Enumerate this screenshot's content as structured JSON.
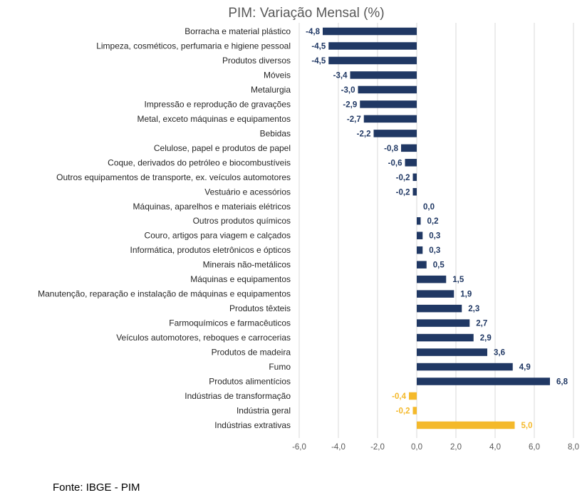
{
  "chart_data": {
    "type": "bar",
    "orientation": "horizontal",
    "title": "PIM: Variação Mensal (%)",
    "categories": [
      "Borracha e material plástico",
      "Limpeza, cosméticos, perfumaria e higiene pessoal",
      "Produtos diversos",
      "Móveis",
      "Metalurgia",
      "Impressão e reprodução de gravações",
      "Metal, exceto máquinas e equipamentos",
      "Bebidas",
      "Celulose, papel e produtos de papel",
      "Coque, derivados do petróleo e biocombustíveis",
      "Outros equipamentos de transporte, ex. veículos automotores",
      "Vestuário e acessórios",
      "Máquinas, aparelhos e materiais elétricos",
      "Outros produtos químicos",
      "Couro, artigos para viagem e calçados",
      "Informática, produtos eletrônicos e ópticos",
      "Minerais não-metálicos",
      "Máquinas e equipamentos",
      "Manutenção, reparação e instalação de máquinas e equipamentos",
      "Produtos têxteis",
      "Farmoquímicos e farmacêuticos",
      "Veículos automotores, reboques e carrocerias",
      "Produtos de madeira",
      "Fumo",
      "Produtos alimentícios",
      "Indústrias de transformação",
      "Indústria geral",
      "Indústrias extrativas"
    ],
    "values": [
      -4.8,
      -4.5,
      -4.5,
      -3.4,
      -3.0,
      -2.9,
      -2.7,
      -2.2,
      -0.8,
      -0.6,
      -0.2,
      -0.2,
      0.0,
      0.2,
      0.3,
      0.3,
      0.5,
      1.5,
      1.9,
      2.3,
      2.7,
      2.9,
      3.6,
      4.9,
      6.8,
      -0.4,
      -0.2,
      5.0
    ],
    "value_labels": [
      "-4,8",
      "-4,5",
      "-4,5",
      "-3,4",
      "-3,0",
      "-2,9",
      "-2,7",
      "-2,2",
      "-0,8",
      "-0,6",
      "-0,2",
      "-0,2",
      "0,0",
      "0,2",
      "0,3",
      "0,3",
      "0,5",
      "1,5",
      "1,9",
      "2,3",
      "2,7",
      "2,9",
      "3,6",
      "4,9",
      "6,8",
      "-0,4",
      "-0,2",
      "5,0"
    ],
    "highlight": [
      false,
      false,
      false,
      false,
      false,
      false,
      false,
      false,
      false,
      false,
      false,
      false,
      false,
      false,
      false,
      false,
      false,
      false,
      false,
      false,
      false,
      false,
      false,
      false,
      false,
      true,
      true,
      true
    ],
    "colors": {
      "sector": "#203864",
      "aggregate": "#F4B92B",
      "grid": "#D9D9D9",
      "tick_text": "#595959"
    },
    "xlim": [
      -6.0,
      8.0
    ],
    "xticks": [
      -6,
      -4,
      -2,
      0,
      2,
      4,
      6,
      8
    ],
    "xtick_labels": [
      "-6,0",
      "-4,0",
      "-2,0",
      "0,0",
      "2,0",
      "4,0",
      "6,0",
      "8,0"
    ],
    "grid": true,
    "legend": "none"
  },
  "source": "Fonte: IBGE - PIM"
}
